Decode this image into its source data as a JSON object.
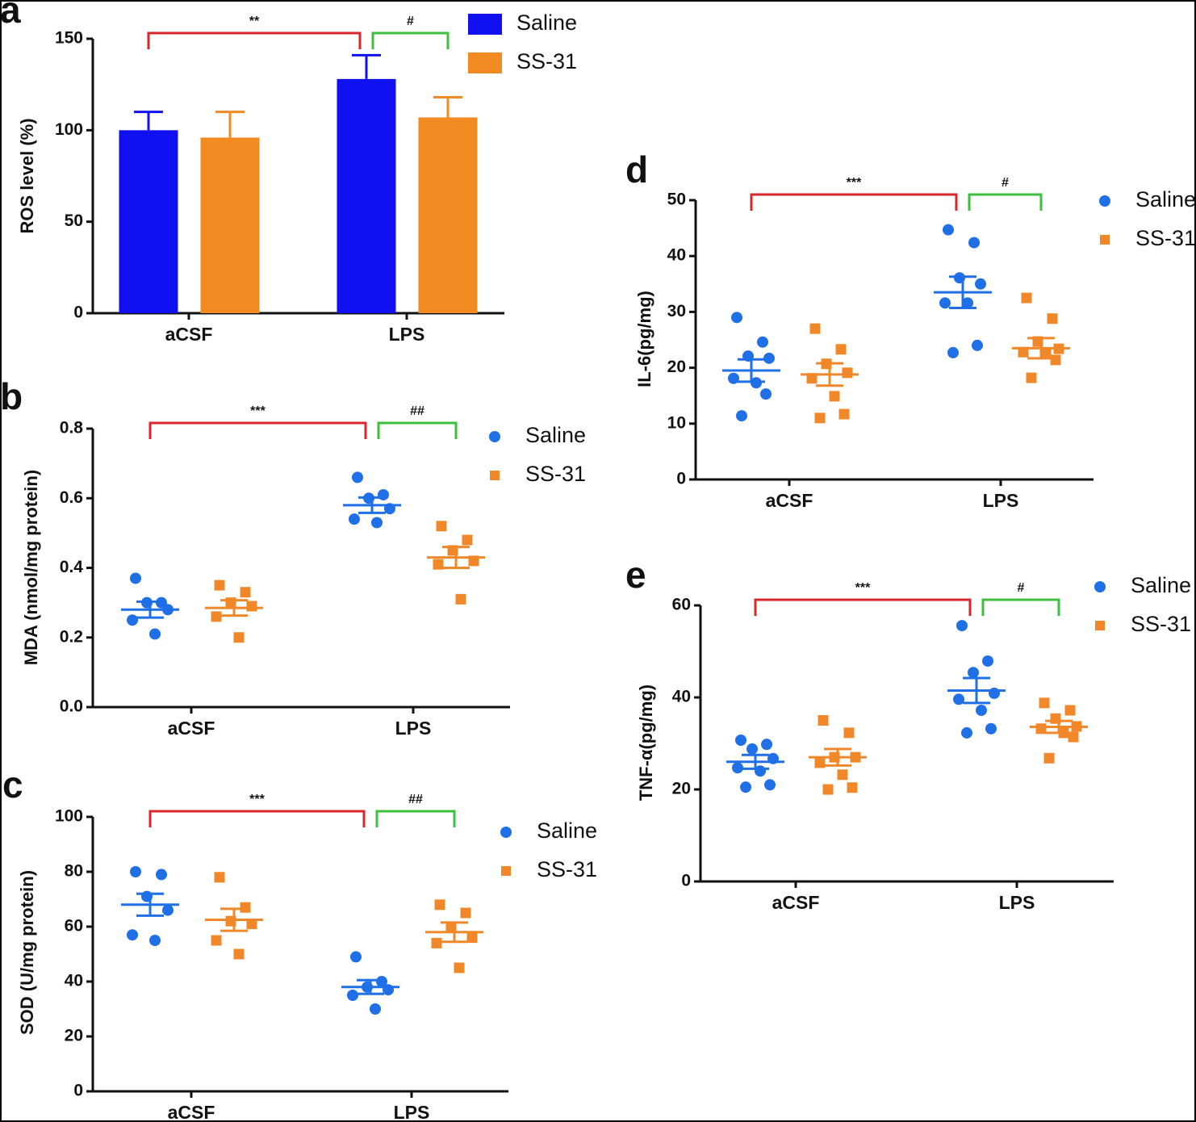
{
  "chart_data": [
    {
      "type": "bar",
      "panel_label": "a",
      "y_label": "ROS level (%)",
      "categories": [
        "aCSF",
        "LPS"
      ],
      "series": [
        {
          "name": "Saline",
          "color": "#1010f0",
          "values": [
            100,
            128
          ],
          "errors": [
            10,
            13
          ]
        },
        {
          "name": "SS-31",
          "color": "#f28a22",
          "values": [
            96,
            107
          ],
          "errors": [
            14,
            11
          ]
        }
      ],
      "ylim": [
        0,
        150
      ],
      "yticks": [
        0,
        50,
        100,
        150
      ],
      "annotations": [
        "**",
        "#"
      ]
    },
    {
      "type": "dotplot",
      "panel_label": "b",
      "y_label": "MDA (nmol/mg protein)",
      "categories": [
        "aCSF",
        "LPS"
      ],
      "series": [
        {
          "name": "Saline",
          "color": "#1f6fe6",
          "marker": "circle",
          "values": [
            [
              0.37,
              0.3,
              0.3,
              0.28,
              0.25,
              0.21
            ],
            [
              0.66,
              0.61,
              0.6,
              0.57,
              0.54,
              0.53
            ]
          ],
          "mean": [
            0.28,
            0.58
          ],
          "sem": [
            0.023,
            0.022
          ]
        },
        {
          "name": "SS-31",
          "color": "#f0882a",
          "marker": "square",
          "values": [
            [
              0.35,
              0.33,
              0.3,
              0.29,
              0.26,
              0.2
            ],
            [
              0.52,
              0.48,
              0.45,
              0.42,
              0.41,
              0.31
            ]
          ],
          "mean": [
            0.285,
            0.43
          ],
          "sem": [
            0.022,
            0.03
          ]
        }
      ],
      "ylim": [
        0,
        0.8
      ],
      "yticks": [
        {
          "value": 0,
          "label": "0.0"
        },
        0.2,
        0.4,
        0.6,
        0.8
      ],
      "annotations": [
        "***",
        "##"
      ]
    },
    {
      "type": "dotplot",
      "panel_label": "c",
      "y_label": "SOD (U/mg protein)",
      "categories": [
        "aCSF",
        "LPS"
      ],
      "series": [
        {
          "name": "Saline",
          "color": "#1f6fe6",
          "marker": "circle",
          "values": [
            [
              80,
              79,
              71,
              66,
              57,
              55
            ],
            [
              49,
              40,
              38,
              37,
              35,
              30
            ]
          ],
          "mean": [
            68,
            38
          ],
          "sem": [
            4,
            2.5
          ]
        },
        {
          "name": "SS-31",
          "color": "#f0882a",
          "marker": "square",
          "values": [
            [
              78,
              67,
              62,
              61,
              55,
              50
            ],
            [
              68,
              65,
              60,
              56,
              54,
              45
            ]
          ],
          "mean": [
            62.5,
            58
          ],
          "sem": [
            4,
            3.5
          ]
        }
      ],
      "ylim": [
        0,
        100
      ],
      "yticks": [
        0,
        20,
        40,
        60,
        80,
        100
      ],
      "annotations": [
        "***",
        "##"
      ]
    },
    {
      "type": "dotplot",
      "panel_label": "d",
      "y_label": "IL-6(pg/mg)",
      "categories": [
        "aCSF",
        "LPS"
      ],
      "series": [
        {
          "name": "Saline",
          "color": "#1f6fe6",
          "marker": "circle",
          "values": [
            [
              29,
              24.6,
              22.1,
              21.7,
              18.1,
              17.3,
              15.3,
              11.4
            ],
            [
              44.7,
              42.4,
              36.1,
              35,
              31.6,
              31.6,
              24,
              22.7
            ]
          ],
          "mean": [
            19.5,
            33.5
          ],
          "sem": [
            2,
            2.8
          ]
        },
        {
          "name": "SS-31",
          "color": "#f0882a",
          "marker": "square",
          "values": [
            [
              27,
              23.3,
              20.7,
              19.1,
              18.1,
              14.9,
              11.7,
              11
            ],
            [
              32.5,
              28.8,
              24.7,
              23.4,
              22.8,
              22.5,
              21.4,
              18.2
            ]
          ],
          "mean": [
            18.8,
            23.5
          ],
          "sem": [
            2,
            1.8
          ]
        }
      ],
      "ylim": [
        0,
        50
      ],
      "yticks": [
        0,
        10,
        20,
        30,
        40,
        50
      ],
      "annotations": [
        "***",
        "#"
      ]
    },
    {
      "type": "dotplot",
      "panel_label": "e",
      "y_label": "TNF-α(pg/mg)",
      "categories": [
        "aCSF",
        "LPS"
      ],
      "series": [
        {
          "name": "Saline",
          "color": "#1f6fe6",
          "marker": "circle",
          "values": [
            [
              30.7,
              29.8,
              28.8,
              26.7,
              24.7,
              24,
              21,
              20.5
            ],
            [
              55.6,
              47.9,
              45.4,
              40.9,
              39.6,
              37.2,
              33.2,
              32.3
            ]
          ],
          "mean": [
            26,
            41.5
          ],
          "sem": [
            1.5,
            2.7
          ]
        },
        {
          "name": "SS-31",
          "color": "#f0882a",
          "marker": "square",
          "values": [
            [
              35,
              32.3,
              27,
              27,
              25.8,
              23.2,
              20.4,
              20
            ],
            [
              38.8,
              37.2,
              35.4,
              33.7,
              33.2,
              32.3,
              31.4,
              26.8
            ]
          ],
          "mean": [
            27,
            33.6
          ],
          "sem": [
            1.8,
            1.3
          ]
        }
      ],
      "ylim": [
        0,
        60
      ],
      "yticks": [
        0,
        20,
        40,
        60
      ],
      "annotations": [
        "***",
        "#"
      ]
    }
  ]
}
